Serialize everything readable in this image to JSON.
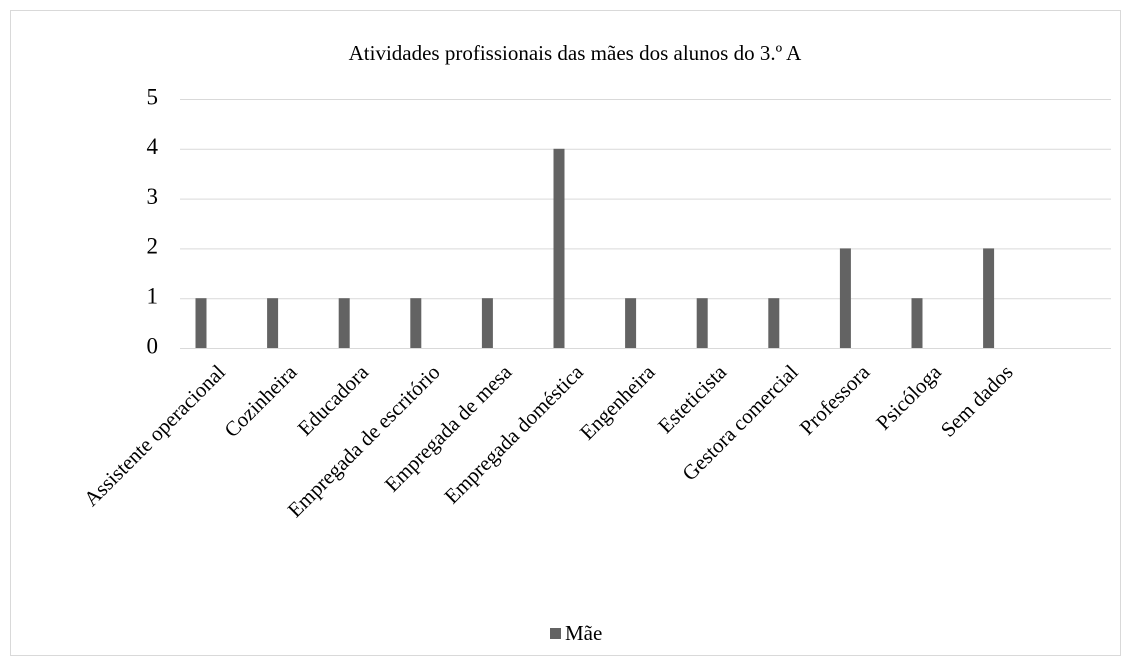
{
  "chart_data": {
    "type": "bar",
    "title": "Atividades profissionais das mães dos alunos do 3.º A",
    "categories": [
      "Assistente operacional",
      "Cozinheira",
      "Educadora",
      "Empregada de escritório",
      "Empregada de mesa",
      "Empregada doméstica",
      "Engenheira",
      "Esteticista",
      "Gestora comercial",
      "Professora",
      "Psicóloga",
      "Sem dados"
    ],
    "series": [
      {
        "name": "Mãe",
        "color": "#636363",
        "values": [
          1,
          1,
          1,
          1,
          1,
          4,
          1,
          1,
          1,
          2,
          1,
          2
        ]
      }
    ],
    "ylim": [
      0,
      5
    ],
    "yticks": [
      0,
      1,
      2,
      3,
      4,
      5
    ],
    "grid": true,
    "legend": "bottom"
  }
}
